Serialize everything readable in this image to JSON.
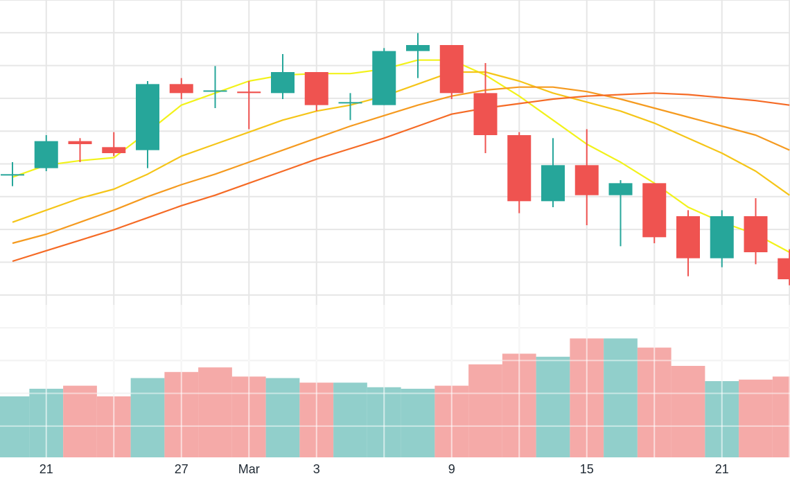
{
  "chart_data": {
    "type": "candlestick",
    "grid": true,
    "legend": "none",
    "x_ticks": [
      {
        "label": "21",
        "index": 1
      },
      {
        "label": "27",
        "index": 5
      },
      {
        "label": "Mar",
        "index": 7
      },
      {
        "label": "3",
        "index": 9
      },
      {
        "label": "9",
        "index": 13
      },
      {
        "label": "15",
        "index": 17
      },
      {
        "label": "21",
        "index": 21
      }
    ],
    "price_range": [
      10,
      22
    ],
    "volume_range": [
      0,
      100
    ],
    "candles": [
      {
        "o": 16.2,
        "h": 16.6,
        "l": 15.8,
        "c": 16.2
      },
      {
        "o": 16.4,
        "h": 17.5,
        "l": 16.3,
        "c": 17.3
      },
      {
        "o": 17.3,
        "h": 17.4,
        "l": 16.6,
        "c": 17.2
      },
      {
        "o": 17.1,
        "h": 17.6,
        "l": 16.8,
        "c": 16.9
      },
      {
        "o": 17.0,
        "h": 19.3,
        "l": 16.4,
        "c": 19.2
      },
      {
        "o": 19.2,
        "h": 19.4,
        "l": 18.7,
        "c": 18.9
      },
      {
        "o": 18.99,
        "h": 19.8,
        "l": 18.4,
        "c": 18.99
      },
      {
        "o": 18.95,
        "h": 19.3,
        "l": 17.7,
        "c": 18.9
      },
      {
        "o": 18.9,
        "h": 20.2,
        "l": 18.7,
        "c": 19.6
      },
      {
        "o": 19.6,
        "h": 19.6,
        "l": 18.3,
        "c": 18.5
      },
      {
        "o": 18.6,
        "h": 18.9,
        "l": 18.0,
        "c": 18.6
      },
      {
        "o": 18.5,
        "h": 20.4,
        "l": 18.5,
        "c": 20.3
      },
      {
        "o": 20.3,
        "h": 20.9,
        "l": 19.4,
        "c": 20.5
      },
      {
        "o": 20.5,
        "h": 20.5,
        "l": 18.7,
        "c": 18.9
      },
      {
        "o": 18.9,
        "h": 19.9,
        "l": 16.9,
        "c": 17.5
      },
      {
        "o": 17.5,
        "h": 17.6,
        "l": 14.9,
        "c": 15.3
      },
      {
        "o": 15.3,
        "h": 17.4,
        "l": 15.1,
        "c": 16.5
      },
      {
        "o": 16.5,
        "h": 17.7,
        "l": 14.5,
        "c": 15.5
      },
      {
        "o": 15.5,
        "h": 16.0,
        "l": 13.8,
        "c": 15.9
      },
      {
        "o": 15.9,
        "h": 15.9,
        "l": 13.9,
        "c": 14.1
      },
      {
        "o": 14.8,
        "h": 15.0,
        "l": 12.8,
        "c": 13.4
      },
      {
        "o": 13.4,
        "h": 15.0,
        "l": 13.1,
        "c": 14.8
      },
      {
        "o": 14.8,
        "h": 15.4,
        "l": 13.2,
        "c": 13.6
      },
      {
        "o": 13.4,
        "h": 13.7,
        "l": 12.5,
        "c": 12.7
      }
    ],
    "volumes": [
      {
        "v": 40,
        "dir": "up"
      },
      {
        "v": 45,
        "dir": "up"
      },
      {
        "v": 47,
        "dir": "down"
      },
      {
        "v": 40,
        "dir": "down"
      },
      {
        "v": 52,
        "dir": "up"
      },
      {
        "v": 56,
        "dir": "down"
      },
      {
        "v": 59,
        "dir": "down"
      },
      {
        "v": 53,
        "dir": "down"
      },
      {
        "v": 52,
        "dir": "up"
      },
      {
        "v": 49,
        "dir": "down"
      },
      {
        "v": 49,
        "dir": "up"
      },
      {
        "v": 46,
        "dir": "up"
      },
      {
        "v": 45,
        "dir": "up"
      },
      {
        "v": 47,
        "dir": "down"
      },
      {
        "v": 61,
        "dir": "down"
      },
      {
        "v": 68,
        "dir": "down"
      },
      {
        "v": 66,
        "dir": "up"
      },
      {
        "v": 78,
        "dir": "down"
      },
      {
        "v": 78,
        "dir": "up"
      },
      {
        "v": 72,
        "dir": "down"
      },
      {
        "v": 60,
        "dir": "down"
      },
      {
        "v": 50,
        "dir": "up"
      },
      {
        "v": 51,
        "dir": "down"
      },
      {
        "v": 53,
        "dir": "down"
      }
    ],
    "moving_averages": [
      {
        "color": "#f2f21a",
        "values": [
          16.1,
          16.5,
          16.65,
          16.75,
          17.6,
          18.5,
          18.9,
          19.3,
          19.5,
          19.55,
          19.55,
          19.7,
          20.0,
          20.0,
          19.5,
          18.8,
          18.0,
          17.2,
          16.6,
          15.9,
          15.1,
          14.6,
          14.2,
          13.6
        ]
      },
      {
        "color": "#f5c518",
        "values": [
          14.6,
          15.0,
          15.4,
          15.7,
          16.2,
          16.8,
          17.2,
          17.6,
          18.0,
          18.3,
          18.5,
          18.8,
          19.2,
          19.6,
          19.6,
          19.3,
          18.9,
          18.6,
          18.3,
          17.9,
          17.4,
          16.9,
          16.3,
          15.5
        ]
      },
      {
        "color": "#f59a1f",
        "values": [
          13.9,
          14.2,
          14.6,
          15.0,
          15.45,
          15.85,
          16.2,
          16.6,
          17.0,
          17.4,
          17.8,
          18.15,
          18.5,
          18.8,
          19.0,
          19.1,
          19.1,
          18.95,
          18.7,
          18.4,
          18.1,
          17.8,
          17.5,
          17.0
        ]
      },
      {
        "color": "#f56a25",
        "values": [
          13.3,
          13.65,
          14.0,
          14.35,
          14.75,
          15.15,
          15.5,
          15.9,
          16.3,
          16.7,
          17.05,
          17.4,
          17.8,
          18.2,
          18.4,
          18.55,
          18.7,
          18.8,
          18.85,
          18.9,
          18.85,
          18.75,
          18.65,
          18.5
        ]
      }
    ],
    "colors": {
      "up": "#26a69a",
      "down": "#ef5350",
      "up_volume": "#91cfcb",
      "down_volume": "#f5aaa8",
      "grid": "#e6e6e6"
    }
  }
}
